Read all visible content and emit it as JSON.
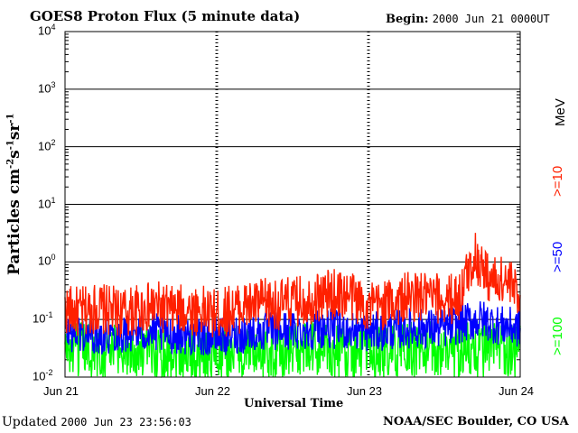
{
  "chart_data": {
    "type": "line",
    "title": "GOES8 Proton Flux (5 minute data)",
    "begin_label": "Begin:",
    "begin_value": "2000 Jun 21 0000UT",
    "xlabel": "Universal Time",
    "ylabel_base": "Particles cm",
    "ylabel_sup1": "-2",
    "ylabel_mid1": "s",
    "ylabel_sup2": "-1",
    "ylabel_mid2": "sr",
    "ylabel_sup3": "-1",
    "yscale": "log",
    "ylim": [
      0.01,
      10000
    ],
    "yticks": [
      {
        "base": "10",
        "exp": "4"
      },
      {
        "base": "10",
        "exp": "3"
      },
      {
        "base": "10",
        "exp": "2"
      },
      {
        "base": "10",
        "exp": "1"
      },
      {
        "base": "10",
        "exp": "0"
      },
      {
        "base": "10",
        "exp": "-1"
      },
      {
        "base": "10",
        "exp": "-2"
      }
    ],
    "xticks": [
      "Jun 21",
      "Jun 22",
      "Jun 23",
      "Jun 24"
    ],
    "xlim_days": [
      0,
      3
    ],
    "units_label": "MeV",
    "grid": true,
    "series": [
      {
        "name": ">=10",
        "color": "#ff2000",
        "points": [
          [
            0,
            0.15
          ],
          [
            0.1,
            0.13
          ],
          [
            0.2,
            0.16
          ],
          [
            0.3,
            0.14
          ],
          [
            0.4,
            0.13
          ],
          [
            0.5,
            0.15
          ],
          [
            0.6,
            0.17
          ],
          [
            0.7,
            0.14
          ],
          [
            0.8,
            0.15
          ],
          [
            0.9,
            0.14
          ],
          [
            1.0,
            0.12
          ],
          [
            1.1,
            0.15
          ],
          [
            1.2,
            0.17
          ],
          [
            1.3,
            0.19
          ],
          [
            1.4,
            0.18
          ],
          [
            1.5,
            0.2
          ],
          [
            1.6,
            0.22
          ],
          [
            1.7,
            0.26
          ],
          [
            1.8,
            0.28
          ],
          [
            1.9,
            0.25
          ],
          [
            2.0,
            0.16
          ],
          [
            2.1,
            0.18
          ],
          [
            2.2,
            0.22
          ],
          [
            2.3,
            0.25
          ],
          [
            2.4,
            0.24
          ],
          [
            2.5,
            0.22
          ],
          [
            2.6,
            0.25
          ],
          [
            2.65,
            0.6
          ],
          [
            2.7,
            1.3
          ],
          [
            2.75,
            0.8
          ],
          [
            2.8,
            0.5
          ],
          [
            2.85,
            0.45
          ],
          [
            2.9,
            0.5
          ],
          [
            2.95,
            0.35
          ],
          [
            3.0,
            0.28
          ]
        ]
      },
      {
        "name": ">=50",
        "color": "#0000ff",
        "points": [
          [
            0,
            0.06
          ],
          [
            0.25,
            0.055
          ],
          [
            0.5,
            0.06
          ],
          [
            0.75,
            0.055
          ],
          [
            1.0,
            0.05
          ],
          [
            1.25,
            0.06
          ],
          [
            1.5,
            0.065
          ],
          [
            1.75,
            0.07
          ],
          [
            2.0,
            0.06
          ],
          [
            2.25,
            0.07
          ],
          [
            2.5,
            0.07
          ],
          [
            2.65,
            0.09
          ],
          [
            2.75,
            0.1
          ],
          [
            2.85,
            0.08
          ],
          [
            3.0,
            0.07
          ]
        ]
      },
      {
        "name": ">=100",
        "color": "#00ff00",
        "points": [
          [
            0,
            0.03
          ],
          [
            0.5,
            0.028
          ],
          [
            1.0,
            0.025
          ],
          [
            1.5,
            0.03
          ],
          [
            2.0,
            0.028
          ],
          [
            2.5,
            0.03
          ],
          [
            3.0,
            0.03
          ]
        ]
      }
    ]
  },
  "footer": {
    "updated_label": "Updated",
    "updated_value": "2000 Jun 23 23:56:03",
    "credit": "NOAA/SEC Boulder, CO USA"
  }
}
